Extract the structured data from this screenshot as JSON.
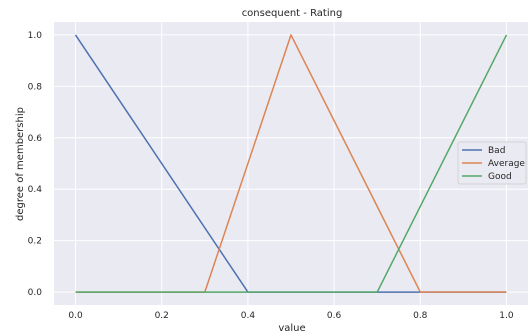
{
  "chart_data": {
    "type": "line",
    "title": "consequent - Rating",
    "xlabel": "value",
    "ylabel": "degree of membership",
    "xlim": [
      -0.05,
      1.05
    ],
    "ylim": [
      -0.05,
      1.05
    ],
    "xticks": [
      "0.0",
      "0.2",
      "0.4",
      "0.6",
      "0.8",
      "1.0"
    ],
    "yticks": [
      "0.0",
      "0.2",
      "0.4",
      "0.6",
      "0.8",
      "1.0"
    ],
    "grid": true,
    "legend_position": "center-right",
    "series": [
      {
        "name": "Bad",
        "color": "#4c72b0",
        "x": [
          0.0,
          0.4,
          1.0
        ],
        "y": [
          1.0,
          0.0,
          0.0
        ]
      },
      {
        "name": "Average",
        "color": "#dd8452",
        "x": [
          0.0,
          0.3,
          0.5,
          0.8,
          1.0
        ],
        "y": [
          0.0,
          0.0,
          1.0,
          0.0,
          0.0
        ]
      },
      {
        "name": "Good",
        "color": "#55a868",
        "x": [
          0.0,
          0.7,
          1.0
        ],
        "y": [
          0.0,
          0.0,
          1.0
        ]
      }
    ]
  }
}
